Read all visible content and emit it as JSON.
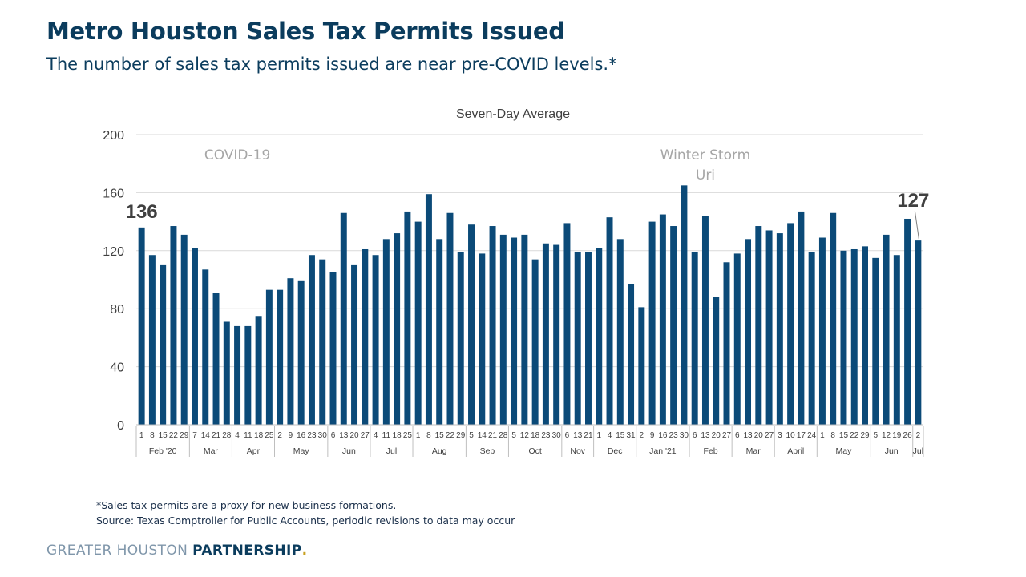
{
  "slide": {
    "title": "Metro Houston Sales Tax Permits Issued",
    "subtitle": "The number of sales tax permits issued are near pre-COVID levels.*"
  },
  "chart_data": {
    "type": "bar",
    "title": "Seven-Day Average",
    "xlabel": "",
    "ylabel": "",
    "ylim": [
      0,
      200
    ],
    "yticks": [
      0,
      40,
      80,
      120,
      160,
      200
    ],
    "grid": true,
    "bar_color": "#0b4a78",
    "categories": [
      "1",
      "8",
      "15",
      "22",
      "29",
      "7",
      "14",
      "21",
      "28",
      "4",
      "11",
      "18",
      "25",
      "2",
      "9",
      "16",
      "23",
      "30",
      "6",
      "13",
      "20",
      "27",
      "4",
      "11",
      "18",
      "25",
      "1",
      "8",
      "15",
      "22",
      "29",
      "5",
      "14",
      "21",
      "28",
      "5",
      "12",
      "18",
      "23",
      "30",
      "6",
      "13",
      "21",
      "1",
      "4",
      "15",
      "31",
      "2",
      "9",
      "16",
      "23",
      "30",
      "6",
      "13",
      "20",
      "27",
      "6",
      "13",
      "20",
      "27",
      "3",
      "10",
      "17",
      "24",
      "1",
      "8",
      "15",
      "22",
      "29",
      "5",
      "12",
      "19",
      "26",
      "2"
    ],
    "values": [
      136,
      117,
      110,
      137,
      131,
      122,
      107,
      91,
      71,
      68,
      68,
      75,
      93,
      93,
      101,
      99,
      117,
      114,
      105,
      146,
      110,
      121,
      117,
      128,
      132,
      147,
      140,
      159,
      128,
      146,
      119,
      138,
      118,
      137,
      131,
      129,
      131,
      114,
      125,
      124,
      139,
      119,
      119,
      122,
      143,
      128,
      97,
      81,
      140,
      145,
      137,
      165,
      119,
      144,
      88,
      112,
      118,
      128,
      137,
      134,
      132,
      139,
      147,
      119,
      129,
      146,
      120,
      121,
      123,
      115,
      131,
      117,
      142,
      127
    ],
    "months": [
      {
        "label": "Feb '20",
        "start": 0,
        "end": 4
      },
      {
        "label": "Mar",
        "start": 5,
        "end": 8
      },
      {
        "label": "Apr",
        "start": 9,
        "end": 12
      },
      {
        "label": "May",
        "start": 13,
        "end": 17
      },
      {
        "label": "Jun",
        "start": 18,
        "end": 21
      },
      {
        "label": "Jul",
        "start": 22,
        "end": 25
      },
      {
        "label": "Aug",
        "start": 26,
        "end": 30
      },
      {
        "label": "Sep",
        "start": 31,
        "end": 34
      },
      {
        "label": "Oct",
        "start": 35,
        "end": 39
      },
      {
        "label": "Nov",
        "start": 40,
        "end": 42
      },
      {
        "label": "Dec",
        "start": 43,
        "end": 46
      },
      {
        "label": "Jan '21",
        "start": 47,
        "end": 51
      },
      {
        "label": "Feb",
        "start": 52,
        "end": 55
      },
      {
        "label": "Mar",
        "start": 56,
        "end": 59
      },
      {
        "label": "April",
        "start": 60,
        "end": 63
      },
      {
        "label": "May",
        "start": 64,
        "end": 68
      },
      {
        "label": "Jun",
        "start": 69,
        "end": 72
      },
      {
        "label": "Jul",
        "start": 73,
        "end": 73
      }
    ],
    "annotations": [
      {
        "text": "COVID-19",
        "index": 9
      },
      {
        "text": "Winter Storm",
        "text2": "Uri",
        "index": 53
      }
    ],
    "callouts": [
      {
        "text": "136",
        "index": 0
      },
      {
        "text": "127",
        "index": 73
      }
    ]
  },
  "footnotes": {
    "note": "*Sales tax permits are a proxy for new business formations.",
    "source": "Source: Texas Comptroller for Public Accounts, periodic revisions to data may occur"
  },
  "brand": {
    "light": "GREATER HOUSTON ",
    "bold": "PARTNERSHIP",
    "dot": "."
  }
}
